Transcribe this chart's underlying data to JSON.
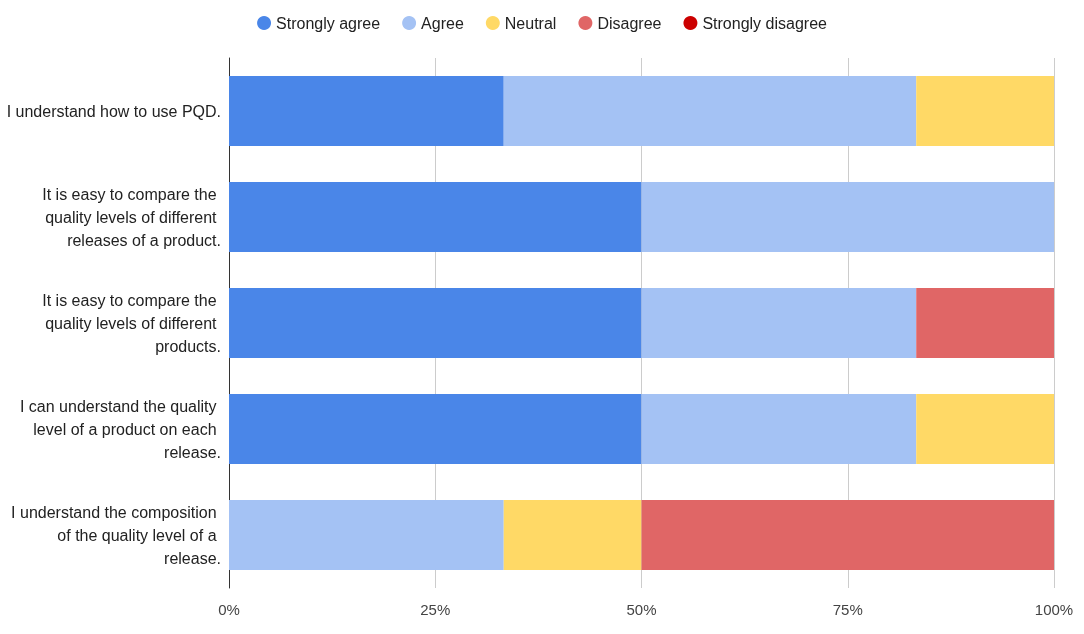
{
  "chart_data": {
    "type": "bar",
    "orientation": "horizontal",
    "stacked": true,
    "categories": [
      "I understand how to use PQD.",
      "It is easy to compare the quality levels of different releases of a product.",
      "It is easy to compare the quality levels of different products.",
      "I can understand the quality level of a product on each release.",
      "I understand the composition of the quality level of a release."
    ],
    "series": [
      {
        "name": "Strongly agree",
        "color": "#4a86e8",
        "values": [
          33.3,
          50,
          50,
          50,
          0
        ]
      },
      {
        "name": "Agree",
        "color": "#a4c2f4",
        "values": [
          50,
          50,
          33.3,
          33.3,
          33.3
        ]
      },
      {
        "name": "Neutral",
        "color": "#ffd966",
        "values": [
          16.7,
          0,
          0,
          16.7,
          16.7
        ]
      },
      {
        "name": "Disagree",
        "color": "#e06666",
        "values": [
          0,
          0,
          16.7,
          0,
          50
        ]
      },
      {
        "name": "Strongly disagree",
        "color": "#cc0000",
        "values": [
          0,
          0,
          0,
          0,
          0
        ]
      }
    ],
    "xlim": [
      0,
      100
    ],
    "xticks": [
      {
        "value": 0,
        "label": "0%"
      },
      {
        "value": 25,
        "label": "25%"
      },
      {
        "value": 50,
        "label": "50%"
      },
      {
        "value": 75,
        "label": "75%"
      },
      {
        "value": 100,
        "label": "100%"
      }
    ],
    "grid": "x",
    "legend": "top"
  }
}
